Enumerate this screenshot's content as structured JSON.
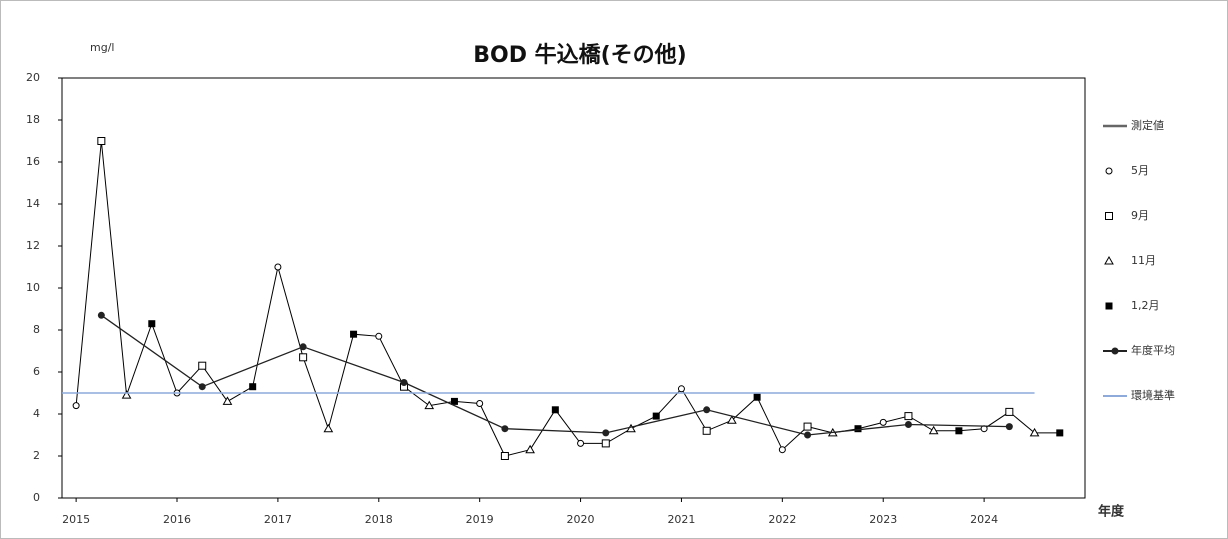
{
  "chart_data": {
    "type": "line",
    "title": "BOD 牛込橋(その他)",
    "y_label": "mg/l",
    "x_label": "年度",
    "xlim": [
      2014.86,
      2025.0
    ],
    "xticks": [
      2015,
      2016,
      2017,
      2018,
      2019,
      2020,
      2021,
      2022,
      2023,
      2024
    ],
    "ylim": [
      0,
      20
    ],
    "yticks": [
      0,
      2,
      4,
      6,
      8,
      10,
      12,
      14,
      16,
      18,
      20
    ],
    "grid": false,
    "legend": "right",
    "measured": {
      "name": "測定値",
      "color": "#666666"
    },
    "series": [
      {
        "name": "5月",
        "color": "#000000",
        "marker": "circle",
        "x": [
          2015,
          2016,
          2017,
          2018,
          2019,
          2020,
          2021,
          2022,
          2023,
          2024
        ],
        "values": [
          4.4,
          5.0,
          11.0,
          7.7,
          4.5,
          2.6,
          5.2,
          2.3,
          3.6,
          3.3
        ]
      },
      {
        "name": "9月",
        "color": "#000000",
        "marker": "square",
        "x": [
          2015.25,
          2016.25,
          2017.25,
          2018.25,
          2019.25,
          2020.25,
          2021.25,
          2022.25,
          2023.25,
          2024.25
        ],
        "values": [
          17.0,
          6.3,
          6.7,
          5.3,
          2.0,
          2.6,
          3.2,
          3.4,
          3.9,
          4.1
        ]
      },
      {
        "name": "11月",
        "color": "#000000",
        "marker": "triangle",
        "x": [
          2015.5,
          2016.5,
          2017.5,
          2018.5,
          2019.5,
          2020.5,
          2021.5,
          2022.5,
          2023.5,
          2024.5
        ],
        "values": [
          4.9,
          4.6,
          3.3,
          4.4,
          2.3,
          3.3,
          3.7,
          3.1,
          3.2,
          3.1
        ]
      },
      {
        "name": "1,2月",
        "color": "#000000",
        "marker": "filled-square",
        "x": [
          2015.75,
          2016.75,
          2017.75,
          2018.75,
          2019.75,
          2020.75,
          2021.75,
          2022.75,
          2023.75,
          2024.75
        ],
        "values": [
          8.3,
          5.3,
          7.8,
          4.6,
          4.2,
          3.9,
          4.8,
          3.3,
          3.2,
          3.1
        ]
      },
      {
        "name": "年度平均",
        "color": "#222222",
        "marker": "dot-line",
        "x": [
          2015.25,
          2016.25,
          2017.25,
          2018.25,
          2019.25,
          2020.25,
          2021.25,
          2022.25,
          2023.25,
          2024.25
        ],
        "values": [
          8.7,
          5.3,
          7.2,
          5.5,
          3.3,
          3.1,
          4.2,
          3.0,
          3.5,
          3.4
        ]
      },
      {
        "name": "環境基準",
        "color": "#8eaadb",
        "marker": "line",
        "x": [
          2014.86,
          2024.5
        ],
        "values": [
          5,
          5
        ]
      }
    ]
  }
}
